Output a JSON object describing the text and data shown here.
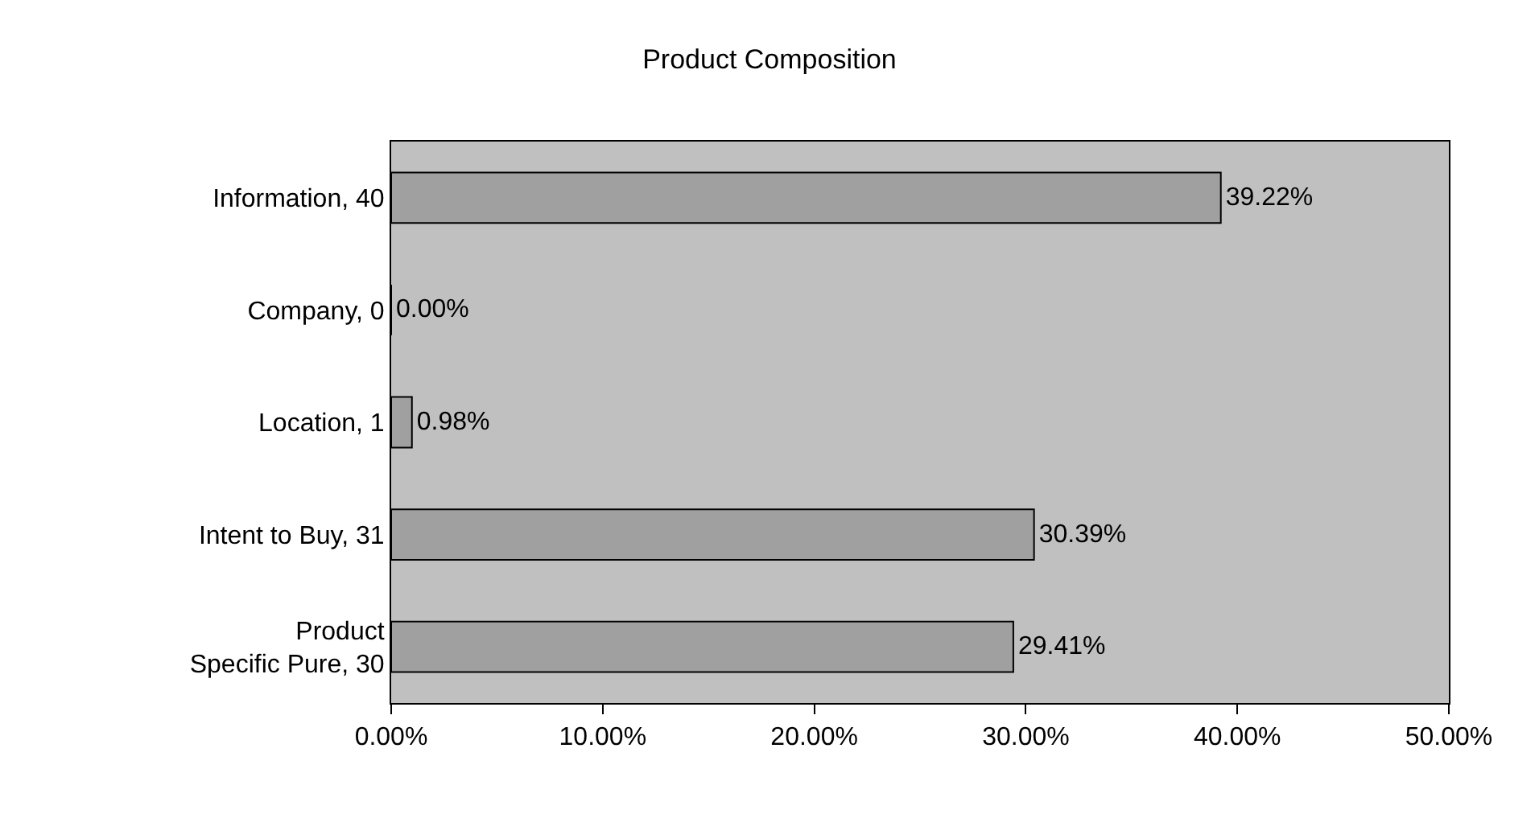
{
  "chart_data": {
    "type": "bar",
    "orientation": "horizontal",
    "title": "Product Composition",
    "categories": [
      "Information, 40",
      "Company, 0",
      "Location, 1",
      "Intent to Buy, 31",
      "Product Specific Pure, 30"
    ],
    "values": [
      39.22,
      0,
      0.98,
      30.39,
      29.41
    ],
    "value_labels": [
      "39.22%",
      "0.00%",
      "0.98%",
      "30.39%",
      "29.41%"
    ],
    "color": "#a0a0a0",
    "xlim": [
      0,
      50
    ],
    "xticks": [
      {
        "value": 0,
        "label": "0.00%"
      },
      {
        "value": 10,
        "label": "10.00%"
      },
      {
        "value": 20,
        "label": "20.00%"
      },
      {
        "value": 30,
        "label": "30.00%"
      },
      {
        "value": 40,
        "label": "40.00%"
      },
      {
        "value": 50,
        "label": "50.00%"
      }
    ],
    "grid": false,
    "legend": false
  }
}
